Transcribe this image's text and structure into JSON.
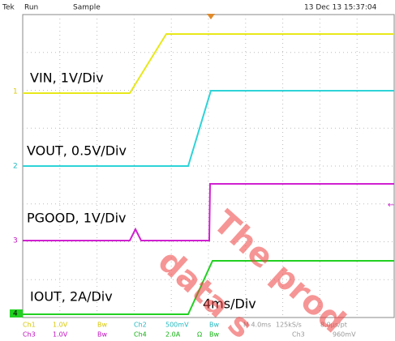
{
  "header": {
    "brand": "Tek",
    "state": "Run",
    "mode": "Sample",
    "timestamp": "13 Dec 13 15:37:04"
  },
  "channel_markers": [
    "1",
    "2",
    "3",
    "4"
  ],
  "trace_labels": [
    "VIN, 1V/Div",
    "VOUT, 0.5V/Div",
    "PGOOD, 1V/Div",
    "IOUT, 2A/Div"
  ],
  "timebase_label": "4ms/Div",
  "footer": {
    "row1": [
      "Ch1",
      "1.0V",
      "Bw",
      "Ch2",
      "500mV",
      "Bw",
      "M 4.0ms",
      "125kS/s",
      "8.0μs/pt"
    ],
    "row2": [
      "Ch3",
      "1.0V",
      "Bw",
      "Ch4",
      "2.0A",
      "Ω",
      "Bw",
      "Ch3",
      "960mV"
    ]
  },
  "watermark": [
    "The prod",
    "data s"
  ]
}
